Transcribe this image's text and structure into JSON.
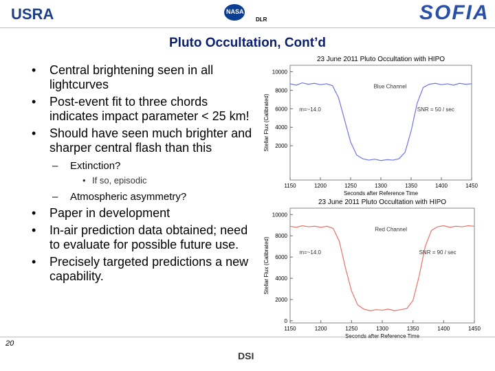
{
  "header": {
    "left_logo": "USRA",
    "center_logo_1": "NASA",
    "center_logo_2": "DLR",
    "right_logo": "SOFIA"
  },
  "slide": {
    "title": "Pluto Occultation, Cont’d",
    "bullets": [
      {
        "marker": "•",
        "text": "Central brightening seen in all lightcurves",
        "level": 0
      },
      {
        "marker": "•",
        "text": "Post-event fit to three chords indicates impact parameter < 25 km!",
        "level": 0
      },
      {
        "marker": "•",
        "text": "Should have seen much brighter and sharper central flash than this",
        "level": 0
      },
      {
        "marker": "–",
        "text": "Extinction?",
        "level": 1
      },
      {
        "marker": "•",
        "text": "If so, episodic",
        "level": 2
      },
      {
        "marker": "–",
        "text": "Atmospheric asymmetry?",
        "level": 1
      },
      {
        "marker": "•",
        "text": "Paper in development",
        "level": 0
      },
      {
        "marker": "•",
        "text": "In-air prediction data obtained; need to evaluate for possible future use.",
        "level": 0
      },
      {
        "marker": "•",
        "text": "Precisely targeted predictions a new capability.",
        "level": 0
      }
    ],
    "page_number": "20"
  },
  "footer": {
    "logo": "DSI"
  },
  "charts": [
    {
      "type": "line",
      "title": "23 June 2011 Pluto Occultation with HIPO",
      "xlabel": "Seconds after Reference Time",
      "ylabel": "Stellar Flux (Calibrated)",
      "annotations": [
        "Blue Channel",
        "m=~14.0",
        "SNR = 50 / sec"
      ],
      "x": [
        1150,
        1160,
        1170,
        1180,
        1190,
        1200,
        1210,
        1220,
        1230,
        1240,
        1250,
        1260,
        1270,
        1280,
        1290,
        1300,
        1310,
        1320,
        1330,
        1340,
        1350,
        1360,
        1370,
        1380,
        1390,
        1400,
        1410,
        1420,
        1430,
        1440,
        1450
      ],
      "series": [
        {
          "name": "Blue Channel",
          "color": "#6f74e0",
          "values": [
            8700,
            8550,
            8800,
            8650,
            8750,
            8600,
            8700,
            8500,
            7200,
            4800,
            2400,
            1000,
            600,
            450,
            550,
            400,
            500,
            450,
            600,
            1300,
            3600,
            6600,
            8300,
            8650,
            8750,
            8600,
            8700,
            8550,
            8750,
            8650,
            8700
          ]
        }
      ],
      "xlim": [
        1150,
        1450
      ],
      "xticks": [
        1150,
        1200,
        1250,
        1300,
        1350,
        1400,
        1450
      ],
      "ylim": [
        -1700,
        10700
      ],
      "yticks": [
        2000,
        4000,
        6000,
        8000,
        10000
      ]
    },
    {
      "type": "line",
      "title": "23 June 2011 Pluto Occultation with HIPO",
      "xlabel": "Seconds after Reference Time",
      "ylabel": "Stellar Flux (Calibrated)",
      "annotations": [
        "Red Channel",
        "m=~14.0",
        "SNR = 90 / sec"
      ],
      "x": [
        1150,
        1160,
        1170,
        1180,
        1190,
        1200,
        1210,
        1220,
        1230,
        1240,
        1250,
        1260,
        1270,
        1280,
        1290,
        1300,
        1310,
        1320,
        1330,
        1340,
        1350,
        1360,
        1370,
        1380,
        1390,
        1400,
        1410,
        1420,
        1430,
        1440,
        1450
      ],
      "series": [
        {
          "name": "Red Channel",
          "color": "#e8706a",
          "values": [
            8900,
            8800,
            8950,
            8850,
            8900,
            8800,
            8900,
            8700,
            7500,
            5000,
            2800,
            1500,
            1100,
            950,
            1050,
            1000,
            1100,
            950,
            1050,
            1150,
            1900,
            4200,
            7000,
            8500,
            8850,
            8950,
            8800,
            8900,
            8850,
            8950,
            8900
          ]
        }
      ],
      "xlim": [
        1150,
        1450
      ],
      "xticks": [
        1150,
        1200,
        1250,
        1300,
        1350,
        1400,
        1450
      ],
      "ylim": [
        -200,
        10600
      ],
      "yticks": [
        0,
        2000,
        4000,
        6000,
        8000,
        10000
      ]
    }
  ]
}
